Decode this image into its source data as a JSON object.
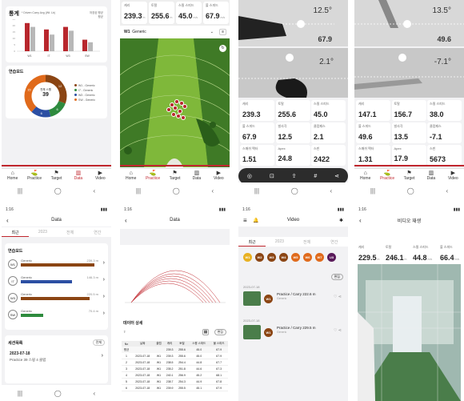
{
  "s1": {
    "title": "통계",
    "legend": "* Driven Carry Avg (Wt. Lb)",
    "legend2a": "저장된 평균",
    "legend2b": "평균",
    "bars": [
      {
        "label": "W1",
        "values": [
          22,
          19
        ]
      },
      {
        "label": "I7",
        "values": [
          17,
          13
        ]
      },
      {
        "label": "W3",
        "values": [
          19,
          16
        ]
      },
      {
        "label": "SW",
        "values": [
          9,
          7
        ]
      }
    ],
    "donut_title": "연습모드",
    "donut_label": "전체 스윙",
    "donut_value": "39",
    "donut_segments": [
      {
        "v": 12,
        "color": "#8b4513"
      },
      {
        "v": 6,
        "color": "#2e8b3e"
      },
      {
        "v": 6,
        "color": "#2c4fa3"
      },
      {
        "v": 15,
        "color": "#e06a1b"
      }
    ],
    "donut_nums": [
      "12",
      "6",
      "6",
      "15"
    ],
    "legend_items": [
      "W1 - Generic",
      "I7 - Generic",
      "W3 - Generic",
      "SW - Generic"
    ]
  },
  "tabs": [
    {
      "label": "Home",
      "icon": "⌂"
    },
    {
      "label": "Practice",
      "icon": "⛳"
    },
    {
      "label": "Target",
      "icon": "⚑"
    },
    {
      "label": "Data",
      "icon": "▥"
    },
    {
      "label": "Video",
      "icon": "▶"
    }
  ],
  "s2": {
    "stats": [
      {
        "l": "캐리",
        "v": "239.3",
        "u": "m"
      },
      {
        "l": "토탈",
        "v": "255.6",
        "u": "m"
      },
      {
        "l": "스윙 스피드",
        "v": "45.0",
        "u": "m/s"
      },
      {
        "l": "볼 스피드",
        "v": "67.9",
        "u": "m/s"
      }
    ],
    "club": "W1",
    "club_name": "Generic"
  },
  "s3": {
    "deg_top": "12.5°",
    "speed_top": "67.9",
    "deg_bottom": "2.1°",
    "grid": [
      [
        "캐리",
        "239.3"
      ],
      [
        "토탈",
        "255.6"
      ],
      [
        "스윙 스피드",
        "45.0"
      ],
      [
        "볼 스피드",
        "67.9"
      ],
      [
        "발사각",
        "12.5"
      ],
      [
        "클럽패스",
        "2.1"
      ],
      [
        "스매쉬 팩터",
        "1.51"
      ],
      [
        "Apex",
        "24.8"
      ],
      [
        "스핀",
        "2422"
      ]
    ]
  },
  "s4": {
    "deg_top": "13.5°",
    "speed_top": "49.6",
    "deg_bottom": "-7.1°",
    "grid": [
      [
        "캐리",
        "147.1"
      ],
      [
        "토탈",
        "156.7"
      ],
      [
        "스윙 스피드",
        "38.0"
      ],
      [
        "볼 스피드",
        "49.6"
      ],
      [
        "발사각",
        "13.5"
      ],
      [
        "클럽패스",
        "-7.1"
      ],
      [
        "스매쉬 팩터",
        "1.31"
      ],
      [
        "Apex",
        "17.9"
      ],
      [
        "스핀",
        "5673"
      ]
    ]
  },
  "s5": {
    "time": "1:16",
    "title": "Data",
    "tabs": [
      "최근",
      "2023",
      "전체",
      "연간"
    ],
    "section": "연습모드",
    "rows": [
      {
        "club": "W1",
        "name": "Generic",
        "val": "239.3 m",
        "color": "#8b4513",
        "w": 92
      },
      {
        "club": "I7",
        "name": "Generic",
        "val": "146.3 m",
        "color": "#2c4fa3",
        "w": 64
      },
      {
        "club": "W3",
        "name": "Generic",
        "val": "220.5 m",
        "color": "#8b4513",
        "w": 86
      },
      {
        "club": "SW",
        "name": "Generic",
        "val": "70.4 m",
        "color": "#2e8b3e",
        "w": 28
      }
    ],
    "session": "세션목록",
    "more": "전체",
    "date": "2023-07-18",
    "detail": "Practice  39 스윙  4 클럽"
  },
  "s6": {
    "time": "1:16",
    "title": "Data",
    "section": "데이터 상세",
    "btn": "편집",
    "headers": [
      "No",
      "날짜",
      "클럽",
      "캐리",
      "토탈",
      "스윙 스피드",
      "볼 스피드"
    ],
    "rows": [
      [
        "평균",
        "",
        "",
        "239.3",
        "255.6",
        "45.0",
        "67.9"
      ],
      [
        "1",
        "2023-07-18",
        "W1",
        "239.3",
        "255.6",
        "45.0",
        "67.9"
      ],
      [
        "2",
        "2023-07-18",
        "W1",
        "238.5",
        "254.4",
        "44.8",
        "67.7"
      ],
      [
        "3",
        "2023-07-18",
        "W1",
        "235.2",
        "251.8",
        "44.6",
        "67.3"
      ],
      [
        "4",
        "2023-07-18",
        "W1",
        "240.1",
        "256.9",
        "45.2",
        "68.1"
      ],
      [
        "5",
        "2023-07-18",
        "W1",
        "238.7",
        "254.3",
        "44.9",
        "67.8"
      ],
      [
        "6",
        "2023-07-18",
        "W1",
        "239.9",
        "255.5",
        "45.1",
        "67.9"
      ]
    ]
  },
  "s7": {
    "time": "1:16",
    "title": "Video",
    "tabs": [
      "최근",
      "2023",
      "전체",
      "연간"
    ],
    "clubs": [
      {
        "c": "#e8b020",
        "t": "W1"
      },
      {
        "c": "#8b4513",
        "t": "W2"
      },
      {
        "c": "#8b4513",
        "t": "W3"
      },
      {
        "c": "#8b4513",
        "t": "W4"
      },
      {
        "c": "#e06a1b",
        "t": "W5"
      },
      {
        "c": "#e06a1b",
        "t": "W6"
      },
      {
        "c": "#e06a1b",
        "t": "W7"
      },
      {
        "c": "#5a1a5a",
        "t": "U3"
      }
    ],
    "btn": "편집",
    "items": [
      {
        "date": "2023-07-18",
        "title": "Practice / Carry 222.6 m",
        "sub": "Generic"
      },
      {
        "date": "2023-07-18",
        "title": "Practice / Carry 229.5 m",
        "sub": "Generic"
      }
    ]
  },
  "s8": {
    "time": "1:16",
    "title": "비디오 재생",
    "stats": [
      {
        "l": "캐리",
        "v": "229.5",
        "u": "m"
      },
      {
        "l": "토탈",
        "v": "246.1",
        "u": "m"
      },
      {
        "l": "스윙 스피드",
        "v": "44.8",
        "u": "m/s"
      },
      {
        "l": "볼 스피드",
        "v": "66.4",
        "u": "m/s"
      }
    ]
  }
}
